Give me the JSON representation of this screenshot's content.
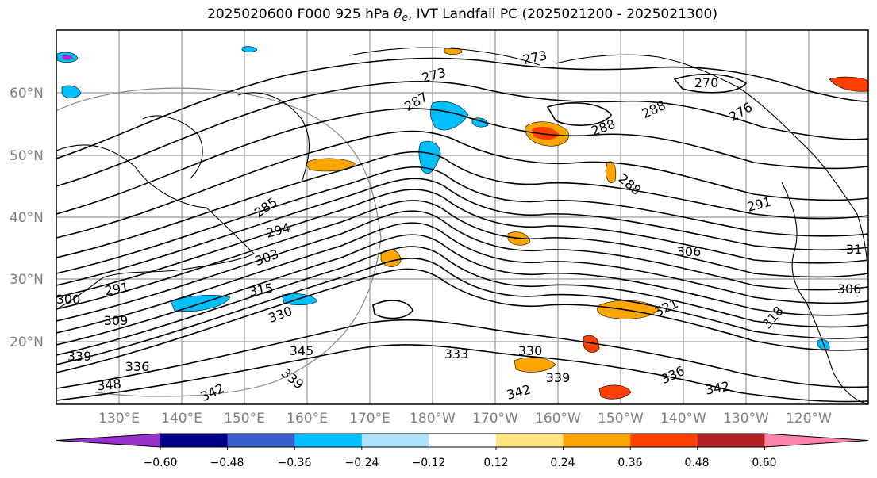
{
  "title": {
    "prefix": "2025020600 F000 925 hPa ",
    "theta": "θ",
    "theta_sub": "e",
    "suffix": ", IVT Landfall PC (2025021200 - 2025021300)"
  },
  "lat_labels": [
    "60°N",
    "50°N",
    "40°N",
    "30°N",
    "20°N"
  ],
  "lon_labels": [
    "130°E",
    "140°E",
    "150°E",
    "160°E",
    "170°E",
    "180°W",
    "170°W",
    "160°W",
    "150°W",
    "140°W",
    "130°W",
    "120°W"
  ],
  "colorbar": {
    "ticks": [
      "−0.60",
      "−0.48",
      "−0.36",
      "−0.24",
      "−0.12",
      "0.12",
      "0.24",
      "0.36",
      "0.48",
      "0.60"
    ],
    "colors": [
      "#9932CC",
      "#00008B",
      "#3A5FCD",
      "#00BFFF",
      "#B0E2FF",
      "#FFFFFF",
      "#FFE680",
      "#FFA500",
      "#FF4000",
      "#B22222",
      "#FF85A8"
    ]
  },
  "contour_labels": [
    "273",
    "270",
    "273",
    "287",
    "288",
    "288",
    "276",
    "288",
    "291",
    "285",
    "294",
    "303",
    "291",
    "300",
    "315",
    "309",
    "330",
    "339",
    "336",
    "348",
    "345",
    "339",
    "342",
    "330",
    "333",
    "339",
    "342",
    "336",
    "342",
    "321",
    "318",
    "306",
    "31",
    "306"
  ]
}
